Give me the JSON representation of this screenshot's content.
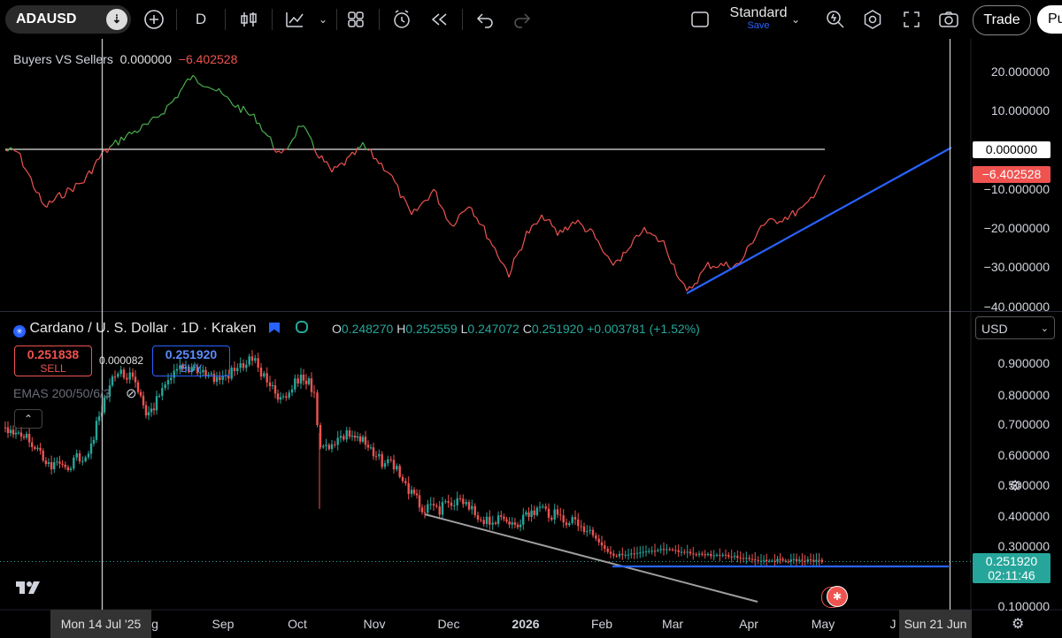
{
  "toolbar": {
    "symbol": "ADAUSD",
    "interval": "D",
    "layout_name": "Standard",
    "save_label": "Save",
    "trade_label": "Trade",
    "publish_label": "Pu"
  },
  "indicator_pane": {
    "title": "Buyers VS Sellers",
    "value1": "0.000000",
    "value2": "−6.402528",
    "axis_labels": [
      "20.000000",
      "10.000000",
      "−10.000000",
      "−20.000000",
      "−30.000000",
      "−40.000000"
    ],
    "zero_tag": "0.000000",
    "current_tag": "−6.402528"
  },
  "price_pane": {
    "title": "Cardano / U. S. Dollar · 1D · Kraken",
    "open_label": "O",
    "open": "0.248270",
    "high_label": "H",
    "high": "0.252559",
    "low_label": "L",
    "low": "0.247072",
    "close_label": "C",
    "close": "0.251920",
    "change": "+0.003781 (+1.52%)",
    "sell_price": "0.251838",
    "sell_label": "SELL",
    "spread": "0.000082",
    "buy_price": "0.251920",
    "buy_label": "BUY",
    "ema_label": "EMAS 200/50/6/3",
    "currency": "USD",
    "axis_labels": [
      "0.900000",
      "0.800000",
      "0.700000",
      "0.600000",
      "0.500000",
      "0.400000",
      "0.300000",
      "0.100000"
    ],
    "current_price": "0.251920",
    "countdown": "02:11:46"
  },
  "time_axis": {
    "crosshair_left": "Mon 14 Jul '25",
    "crosshair_right": "Sun 21 Jun",
    "labels": [
      "g",
      "Sep",
      "Oct",
      "Nov",
      "Dec",
      "2026",
      "Feb",
      "Mar",
      "Apr",
      "May",
      "J"
    ]
  },
  "colors": {
    "bull": "#26a69a",
    "bear": "#ef5350",
    "trendline": "#2962ff",
    "indicator_up": "#4caf50",
    "indicator_down": "#ef5350"
  },
  "icons": [
    "add-icon",
    "candles-icon",
    "indicators-icon",
    "templates-icon",
    "alert-icon",
    "replay-icon",
    "undo-icon",
    "redo-icon",
    "layout-icon",
    "quick-search-icon",
    "settings-icon",
    "fullscreen-icon",
    "camera-icon",
    "logo-icon",
    "flag-icon",
    "us-flag-icon",
    "axis-settings-icon"
  ]
}
